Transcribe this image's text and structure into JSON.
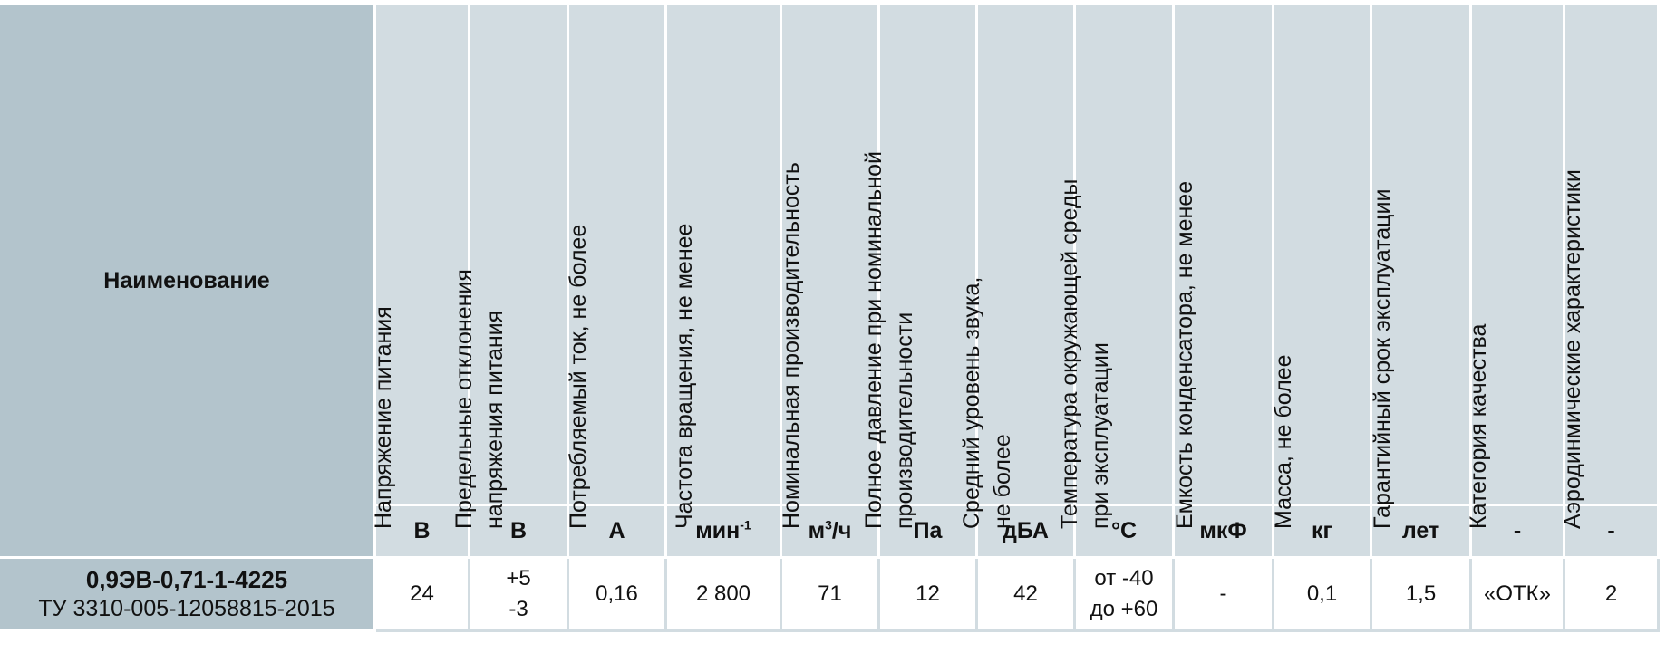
{
  "table": {
    "name_header": "Наименование",
    "columns": [
      {
        "lines": [
          "Напряжение  питания"
        ],
        "unit": "В"
      },
      {
        "lines": [
          "Предельные отклонения",
          "напряжения питания"
        ],
        "unit": "В"
      },
      {
        "lines": [
          "Потребляемый ток, не более"
        ],
        "unit": "А"
      },
      {
        "lines": [
          "Частота вращения, не менее"
        ],
        "unit": "мин",
        "unit_sup": "-1"
      },
      {
        "lines": [
          "Номинальная производительность"
        ],
        "unit": "м",
        "unit_sup": "3",
        "unit_suffix": "/ч"
      },
      {
        "lines": [
          "Полное давление при номинальной",
          "производительности"
        ],
        "unit": "Па"
      },
      {
        "lines": [
          "Средний уровень звука,",
          "не более"
        ],
        "unit": "дБА"
      },
      {
        "lines": [
          "Температура окружающей среды",
          "при эксплуатации"
        ],
        "unit": "°С"
      },
      {
        "lines": [
          "Емкость конденсатора, не менее"
        ],
        "unit": "мкФ"
      },
      {
        "lines": [
          "Масса, не более"
        ],
        "unit": "кг"
      },
      {
        "lines": [
          "Гарантийный срок эксплуатации"
        ],
        "unit": "лет"
      },
      {
        "lines": [
          "Категория качества"
        ],
        "unit": "-"
      },
      {
        "lines": [
          "Аэродинмические характеристики"
        ],
        "unit": "-"
      }
    ],
    "row": {
      "model": "0,9ЭВ-0,71-1-4225",
      "tu": "ТУ 3310-005-12058815-2015",
      "values": [
        [
          "24"
        ],
        [
          "+5",
          "-3"
        ],
        [
          "0,16"
        ],
        [
          "2 800"
        ],
        [
          "71"
        ],
        [
          "12"
        ],
        [
          "42"
        ],
        [
          "от -40",
          "до +60"
        ],
        [
          "-"
        ],
        [
          "0,1"
        ],
        [
          "1,5"
        ],
        [
          "«ОТК»"
        ],
        [
          "2"
        ]
      ]
    }
  }
}
